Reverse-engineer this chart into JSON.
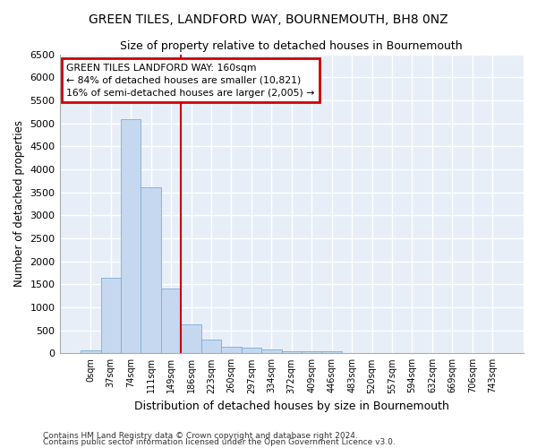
{
  "title": "GREEN TILES, LANDFORD WAY, BOURNEMOUTH, BH8 0NZ",
  "subtitle": "Size of property relative to detached houses in Bournemouth",
  "xlabel": "Distribution of detached houses by size in Bournemouth",
  "ylabel": "Number of detached properties",
  "categories": [
    "0sqm",
    "37sqm",
    "74sqm",
    "111sqm",
    "149sqm",
    "186sqm",
    "223sqm",
    "260sqm",
    "297sqm",
    "334sqm",
    "372sqm",
    "409sqm",
    "446sqm",
    "483sqm",
    "520sqm",
    "557sqm",
    "594sqm",
    "632sqm",
    "669sqm",
    "706sqm",
    "743sqm"
  ],
  "bar_heights": [
    70,
    1650,
    5080,
    3600,
    1400,
    620,
    295,
    150,
    130,
    90,
    50,
    40,
    50,
    0,
    0,
    0,
    0,
    0,
    0,
    0,
    0
  ],
  "bar_color": "#c5d8f0",
  "bar_edge_color": "#7aadd4",
  "bg_color": "#e8eef8",
  "grid_color": "#ffffff",
  "vline_x_index": 4,
  "vline_color": "#cc0000",
  "annotation_text": "GREEN TILES LANDFORD WAY: 160sqm\n← 84% of detached houses are smaller (10,821)\n16% of semi-detached houses are larger (2,005) →",
  "annotation_box_color": "#cc0000",
  "ylim": [
    0,
    6500
  ],
  "yticks": [
    0,
    500,
    1000,
    1500,
    2000,
    2500,
    3000,
    3500,
    4000,
    4500,
    5000,
    5500,
    6000,
    6500
  ],
  "footer1": "Contains HM Land Registry data © Crown copyright and database right 2024.",
  "footer2": "Contains public sector information licensed under the Open Government Licence v3.0."
}
